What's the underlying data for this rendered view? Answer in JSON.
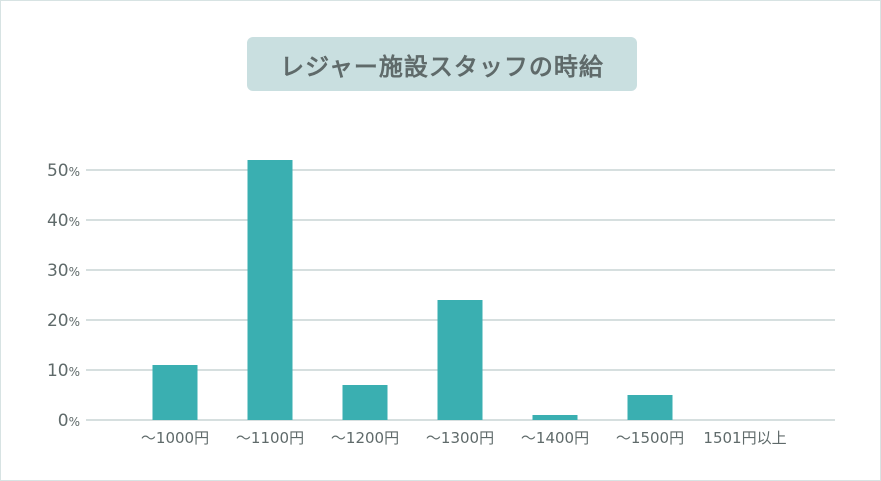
{
  "title": "レジャー施設スタッフの時給",
  "colors": {
    "bar": "#3aafb1",
    "grid": "#aebfbf",
    "title_bg": "#c9dfe0",
    "text": "#5f6a6a"
  },
  "chart_data": {
    "type": "bar",
    "title": "レジャー施設スタッフの時給",
    "categories": [
      "～1000円",
      "～1100円",
      "～1200円",
      "～1300円",
      "～1400円",
      "～1500円",
      "1501円以上"
    ],
    "values": [
      11,
      52,
      7,
      24,
      1,
      5,
      0
    ],
    "unit": "%",
    "ylim": [
      0,
      50
    ],
    "yticks": [
      0,
      10,
      20,
      30,
      40,
      50
    ],
    "ytick_labels": [
      "0%",
      "10%",
      "20%",
      "30%",
      "40%",
      "50%"
    ],
    "grid": true,
    "legend": "none",
    "xlabel": "",
    "ylabel": ""
  }
}
